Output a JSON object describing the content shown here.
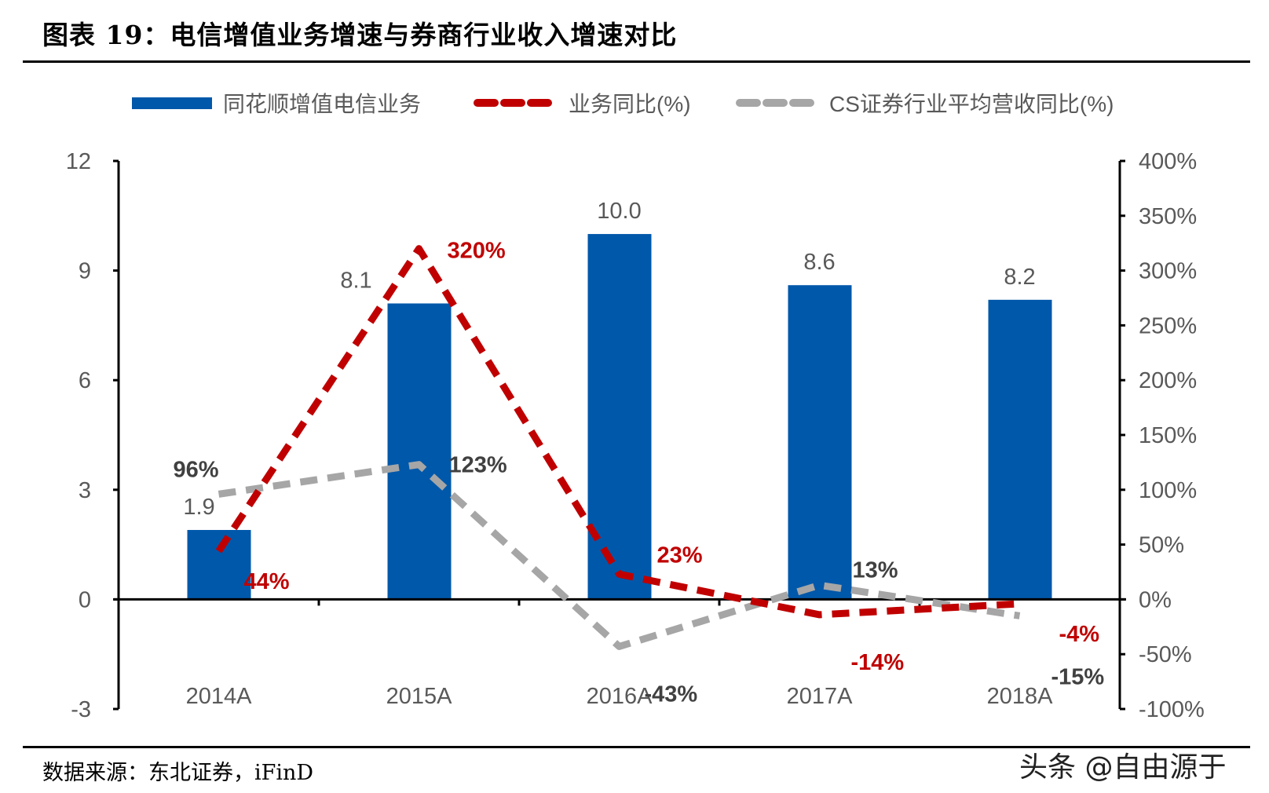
{
  "title": "图表 19：电信增值业务增速与券商行业收入增速对比",
  "source": "数据来源：东北证券，iFinD",
  "watermark": "头条 @自由源于",
  "chart_data": {
    "type": "bar+line",
    "categories": [
      "2014A",
      "2015A",
      "2016A",
      "2017A",
      "2018A"
    ],
    "left_axis": {
      "range": [
        -3,
        12
      ],
      "ticks": [
        "-3",
        "0",
        "3",
        "6",
        "9",
        "12"
      ],
      "tick_values": [
        -3,
        0,
        3,
        6,
        9,
        12
      ]
    },
    "right_axis": {
      "range": [
        -100,
        400
      ],
      "ticks": [
        "-100%",
        "-50%",
        "0%",
        "50%",
        "100%",
        "150%",
        "200%",
        "250%",
        "300%",
        "350%",
        "400%"
      ],
      "tick_values": [
        -100,
        -50,
        0,
        50,
        100,
        150,
        200,
        250,
        300,
        350,
        400
      ]
    },
    "legend_position": "top",
    "grid": false,
    "series": [
      {
        "name": "同花顺增值电信业务",
        "type": "bar",
        "axis": "left",
        "color": "#0058AA",
        "values": [
          1.9,
          8.1,
          10.0,
          8.6,
          8.2
        ],
        "labels": [
          "1.9",
          "8.1",
          "10.0",
          "8.6",
          "8.2"
        ]
      },
      {
        "name": "业务同比(%)",
        "type": "line",
        "style": "dashed",
        "axis": "right",
        "color": "#C00000",
        "values": [
          44,
          320,
          23,
          -14,
          -4
        ],
        "labels": [
          "44%",
          "320%",
          "23%",
          "-14%",
          "-4%"
        ]
      },
      {
        "name": "CS证券行业平均营收同比(%)",
        "type": "line",
        "style": "dashed",
        "axis": "right",
        "color": "#A6A6A6",
        "values": [
          96,
          123,
          -43,
          13,
          -15
        ],
        "labels": [
          "96%",
          "123%",
          "-43%",
          "13%",
          "-15%"
        ]
      }
    ]
  }
}
